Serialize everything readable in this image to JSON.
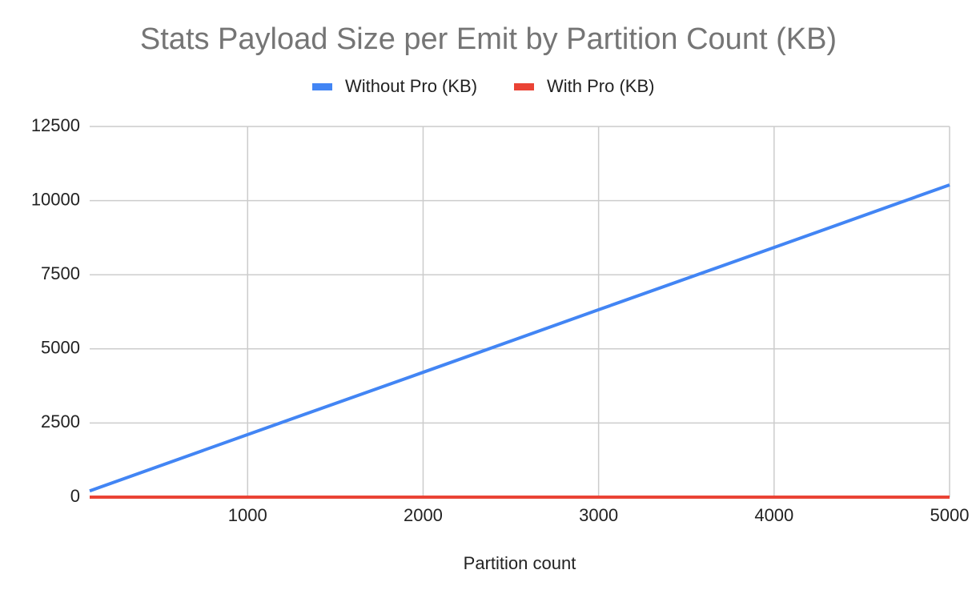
{
  "chart_data": {
    "type": "line",
    "title": "Stats Payload Size per Emit by Partition Count (KB)",
    "x_label": "Partition count",
    "x": [
      100,
      1000,
      2000,
      3000,
      4000,
      5000
    ],
    "series": [
      {
        "name": "Without Pro (KB)",
        "color": "#4285f4",
        "values": [
          210,
          2110,
          4210,
          6320,
          8420,
          10530
        ]
      },
      {
        "name": "With Pro (KB)",
        "color": "#ea4335",
        "values": [
          1,
          1,
          1,
          1,
          1,
          1
        ]
      }
    ],
    "xlim": [
      100,
      5000
    ],
    "xticks": [
      1000,
      2000,
      3000,
      4000,
      5000
    ],
    "ylim": [
      0,
      12500
    ],
    "yticks": [
      0,
      2500,
      5000,
      7500,
      10000,
      12500
    ],
    "grid": true,
    "legend": "top"
  }
}
